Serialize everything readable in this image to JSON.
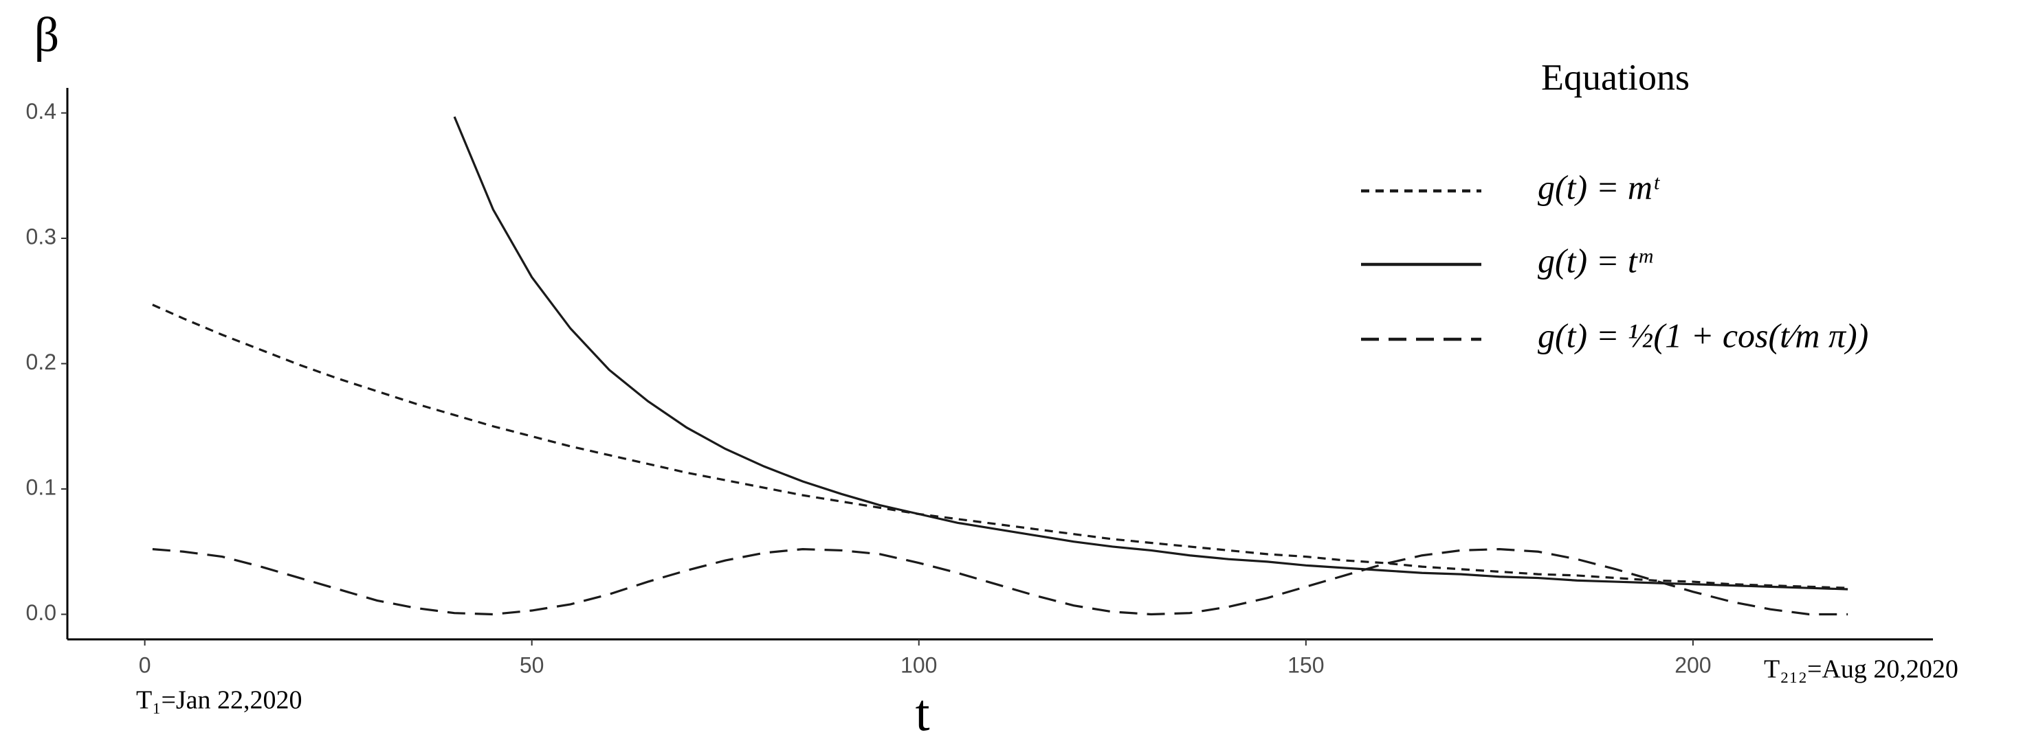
{
  "chart_data": {
    "type": "line",
    "y_label": "β",
    "x_label": "t",
    "x_annotations": [
      "T₁=Jan 22,2020",
      "T₂₁₂=Aug 20,2020"
    ],
    "legend_title": "Equations",
    "x": [
      1,
      5,
      10,
      15,
      20,
      25,
      30,
      35,
      40,
      45,
      50,
      55,
      60,
      65,
      70,
      75,
      80,
      85,
      90,
      95,
      100,
      105,
      110,
      115,
      120,
      125,
      130,
      135,
      140,
      145,
      150,
      155,
      160,
      165,
      170,
      175,
      180,
      185,
      190,
      195,
      200,
      205,
      210,
      215,
      220
    ],
    "series": [
      {
        "name": "g(t) = mᵗ",
        "color": "#1a1a1a",
        "dash": "short",
        "values": [
          0.247,
          0.236,
          0.223,
          0.211,
          0.199,
          0.188,
          0.178,
          0.168,
          0.159,
          0.15,
          0.142,
          0.134,
          0.127,
          0.12,
          0.113,
          0.107,
          0.101,
          0.095,
          0.09,
          0.085,
          0.08,
          0.076,
          0.072,
          0.068,
          0.064,
          0.06,
          0.057,
          0.054,
          0.051,
          0.048,
          0.046,
          0.043,
          0.041,
          0.038,
          0.036,
          0.034,
          0.032,
          0.031,
          0.029,
          0.027,
          0.026,
          0.024,
          0.023,
          0.022,
          0.021
        ]
      },
      {
        "name": "g(t) = tᵐ",
        "color": "#1a1a1a",
        "dash": "solid",
        "values": [
          null,
          null,
          null,
          null,
          null,
          null,
          null,
          null,
          0.397,
          0.323,
          0.269,
          0.228,
          0.195,
          0.17,
          0.149,
          0.132,
          0.118,
          0.106,
          0.096,
          0.087,
          0.08,
          0.073,
          0.068,
          0.063,
          0.058,
          0.054,
          0.051,
          0.047,
          0.044,
          0.042,
          0.039,
          0.037,
          0.035,
          0.033,
          0.032,
          0.03,
          0.029,
          0.027,
          0.026,
          0.025,
          0.024,
          0.023,
          0.022,
          0.021,
          0.02
        ]
      },
      {
        "name": "g(t) = ½(1 + cos(t⁄m π))",
        "color": "#1a1a1a",
        "dash": "long",
        "values": [
          0.052,
          0.05,
          0.046,
          0.038,
          0.029,
          0.02,
          0.011,
          0.005,
          0.001,
          0.0,
          0.003,
          0.008,
          0.016,
          0.026,
          0.035,
          0.043,
          0.049,
          0.052,
          0.051,
          0.048,
          0.041,
          0.033,
          0.024,
          0.015,
          0.007,
          0.002,
          0.0,
          0.001,
          0.006,
          0.013,
          0.022,
          0.031,
          0.04,
          0.047,
          0.051,
          0.052,
          0.05,
          0.044,
          0.036,
          0.027,
          0.018,
          0.01,
          0.004,
          0.0,
          0.0
        ]
      }
    ],
    "xlim": [
      -10,
      231
    ],
    "xticks": [
      0,
      50,
      100,
      150,
      200
    ],
    "ylim": [
      -0.02,
      0.42
    ],
    "yticks": [
      {
        "value": 0,
        "label": "0.0"
      },
      {
        "value": 0.1,
        "label": "0.1"
      },
      {
        "value": 0.2,
        "label": "0.2"
      },
      {
        "value": 0.3,
        "label": "0.3"
      },
      {
        "value": 0.4,
        "label": "0.4"
      }
    ],
    "grid": false,
    "legend": "top-right"
  }
}
